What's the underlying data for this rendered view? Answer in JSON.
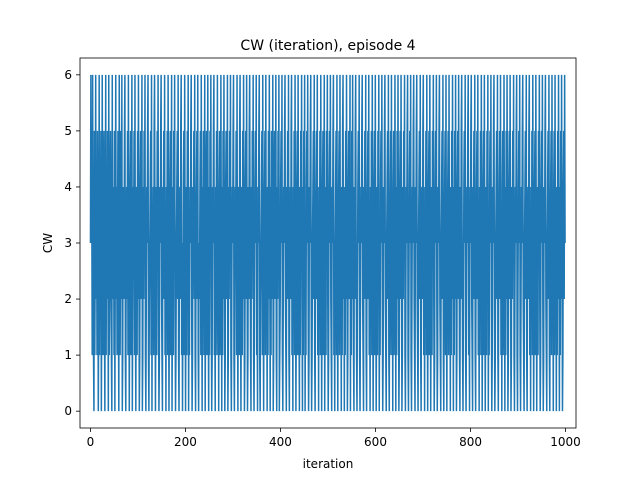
{
  "chart_data": {
    "type": "line",
    "title": "CW (iteration), episode 4",
    "xlabel": "iteration",
    "ylabel": "CW",
    "xlim": [
      -22,
      1022
    ],
    "ylim": [
      -0.3,
      6.3
    ],
    "xticks": [
      0,
      200,
      400,
      600,
      800,
      1000
    ],
    "yticks": [
      0,
      1,
      2,
      3,
      4,
      5,
      6
    ],
    "grid": false,
    "series": [
      {
        "color": "#1f77b4",
        "linewidth": 1.5,
        "values_description_free": true,
        "x_start": 0,
        "x_end": 999,
        "values": [
          3,
          6,
          3,
          4,
          1,
          6,
          2,
          1,
          0,
          5,
          1,
          3,
          6,
          2,
          4,
          1,
          5,
          3,
          0,
          2,
          6,
          1,
          4,
          3,
          5,
          0,
          2,
          6,
          3,
          1,
          4,
          5,
          2,
          0,
          3,
          6,
          1,
          4,
          2,
          5,
          3,
          0,
          6,
          1,
          2,
          4,
          5,
          3,
          1,
          0,
          6,
          2,
          3,
          4,
          1,
          5,
          0,
          3,
          6,
          2,
          4,
          1,
          3,
          5,
          2,
          0,
          6,
          4,
          1,
          3,
          5,
          2,
          6,
          0,
          1,
          4,
          3,
          2,
          5,
          6,
          1,
          0,
          3,
          4,
          2,
          5,
          1,
          6,
          3,
          0,
          2,
          4,
          5,
          1,
          3,
          6,
          0,
          2,
          4,
          3,
          5,
          1,
          6,
          2,
          0,
          3,
          4,
          1,
          5,
          2,
          6,
          3,
          0,
          1,
          4,
          5,
          2,
          3,
          6,
          0,
          1,
          4,
          2,
          5,
          3,
          6,
          1,
          0,
          2,
          4,
          3,
          5,
          6,
          1,
          0,
          2,
          3,
          4,
          5,
          1,
          6,
          0,
          3,
          2,
          4,
          1,
          5,
          6,
          3,
          0,
          2,
          4,
          1,
          5,
          3,
          6,
          2,
          0,
          1,
          4,
          3,
          5,
          6,
          2,
          1,
          0,
          4,
          3,
          5,
          2,
          6,
          1,
          3,
          0,
          4,
          2,
          5,
          1,
          6,
          3,
          0,
          2,
          4,
          5,
          1,
          3,
          6,
          0,
          2,
          4,
          1,
          5,
          3,
          6,
          2,
          0,
          1,
          3,
          4,
          5,
          2,
          6,
          1,
          0,
          3,
          4,
          2,
          5,
          6,
          1,
          3,
          0,
          2,
          4,
          5,
          1,
          6,
          3,
          0,
          2,
          4,
          1,
          5,
          3,
          6,
          0,
          2,
          1,
          4,
          3,
          5,
          6,
          2,
          0,
          1,
          4,
          3,
          5,
          2,
          6,
          1,
          0,
          3,
          4,
          5,
          2,
          6,
          1,
          0,
          3,
          2,
          4,
          5,
          1,
          6,
          3,
          0,
          4,
          2,
          5,
          1,
          3,
          6,
          0,
          2,
          4,
          5,
          1,
          3,
          6,
          2,
          0,
          4,
          1,
          5,
          3,
          6,
          2,
          0,
          1,
          4,
          3,
          5,
          6,
          1,
          2,
          0,
          4,
          3,
          5,
          1,
          6,
          2,
          3,
          0,
          4,
          5,
          1,
          2,
          6,
          3,
          0,
          4,
          1,
          5,
          2,
          6,
          3,
          0,
          1,
          4,
          5,
          2,
          3,
          6,
          0,
          1,
          4,
          2,
          5,
          3,
          6,
          1,
          0,
          2,
          4,
          3,
          5,
          6,
          1,
          0,
          2,
          4,
          3,
          5,
          1,
          6,
          2,
          0,
          3,
          4,
          1,
          5,
          6,
          2,
          0,
          3,
          4,
          1,
          5,
          2,
          6,
          3,
          0,
          1,
          4,
          5,
          2,
          6,
          3,
          0,
          1,
          4,
          2,
          5,
          6,
          3,
          1,
          0,
          4,
          2,
          5,
          3,
          6,
          1,
          0,
          2,
          4,
          5,
          3,
          6,
          1,
          2,
          0,
          4,
          3,
          5,
          6,
          1,
          0,
          2,
          3,
          4,
          5,
          1,
          6,
          2,
          0,
          3,
          4,
          5,
          1,
          6,
          2,
          3,
          0,
          4,
          1,
          5,
          2,
          6,
          3,
          0,
          4,
          1,
          5,
          2,
          3,
          6,
          0,
          1,
          4,
          5,
          2,
          3,
          6,
          1,
          0,
          4,
          2,
          5,
          3,
          6,
          0,
          1,
          2,
          4,
          5,
          3,
          6,
          1,
          0,
          2,
          4,
          3,
          5,
          6,
          2,
          1,
          0,
          4,
          3,
          5,
          2,
          6,
          1,
          0,
          3,
          4,
          2,
          5,
          6,
          1,
          3,
          0,
          4,
          2,
          5,
          1,
          6,
          3,
          0,
          2,
          4,
          5,
          1,
          6,
          3,
          2,
          0,
          4,
          1,
          5,
          3,
          6,
          2,
          0,
          4,
          1,
          5,
          3,
          6,
          0,
          2,
          1,
          4,
          5,
          3,
          6,
          2,
          0,
          1,
          4,
          3,
          5,
          6,
          2,
          0,
          1,
          3,
          4,
          5,
          2,
          6,
          1,
          0,
          3,
          4,
          5,
          2,
          6,
          1,
          3,
          0,
          4,
          2,
          5,
          1,
          6,
          3,
          0,
          2,
          4,
          5,
          1,
          3,
          6,
          0,
          2,
          4,
          1,
          5,
          3,
          6,
          2,
          0,
          1,
          4,
          5,
          3,
          6,
          2,
          1,
          0,
          4,
          3,
          5,
          6,
          1,
          2,
          0,
          3,
          4,
          5,
          1,
          6,
          2,
          0,
          3,
          4,
          5,
          1,
          6,
          2,
          3,
          0,
          4,
          1,
          5,
          6,
          2,
          3,
          0,
          4,
          1,
          5,
          2,
          6,
          3,
          0,
          1,
          4,
          5,
          2,
          3,
          6,
          0,
          4,
          1,
          5,
          2,
          6,
          3,
          1,
          0,
          4,
          2,
          5,
          6,
          3,
          1,
          0,
          2,
          4,
          5,
          3,
          6,
          1,
          0,
          2,
          4,
          3,
          5,
          6,
          2,
          1,
          0,
          4,
          3,
          5,
          2,
          6,
          1,
          0,
          3,
          4,
          5,
          2,
          6,
          1,
          3,
          0,
          4,
          2,
          5,
          1,
          6,
          3,
          0,
          2,
          4,
          5,
          1,
          6,
          3,
          0,
          2,
          4,
          1,
          5,
          3,
          6,
          0,
          2,
          1,
          4,
          5,
          3,
          6,
          2,
          0,
          1,
          4,
          3,
          5,
          6,
          2,
          1,
          0,
          3,
          4,
          5,
          2,
          6,
          1,
          0,
          3,
          4,
          5,
          1,
          6,
          2,
          3,
          0,
          4,
          5,
          1,
          2,
          6,
          3,
          0,
          4,
          1,
          5,
          2,
          6,
          3,
          0,
          1,
          4,
          5,
          2,
          6,
          3,
          0,
          1,
          4,
          2,
          5,
          3,
          6,
          1,
          0,
          2,
          4,
          3,
          5,
          6,
          1,
          0,
          2,
          4,
          5,
          3,
          6,
          1,
          0,
          2,
          4,
          3,
          5,
          6,
          2,
          1,
          0,
          4,
          3,
          5,
          6,
          2,
          1,
          0,
          3,
          4,
          5,
          2,
          6,
          1,
          0,
          3,
          4,
          2,
          5,
          6,
          1,
          3,
          0,
          4,
          2,
          5,
          1,
          6,
          3,
          0,
          2,
          4,
          5,
          1,
          6,
          3,
          0,
          2,
          4,
          1,
          5,
          3,
          6,
          2,
          0,
          1,
          4,
          5,
          3,
          6,
          2,
          0,
          1,
          4,
          3,
          5,
          6,
          2,
          1,
          0,
          3,
          4,
          5,
          2,
          6,
          1,
          0,
          3,
          4,
          5,
          1,
          6,
          2,
          0,
          3,
          4,
          5,
          1,
          6,
          2,
          3,
          0,
          4,
          1,
          5,
          2,
          6,
          3,
          0,
          4,
          1,
          5,
          2,
          6,
          3,
          0,
          1,
          4,
          5,
          2,
          6,
          3,
          1,
          0,
          4,
          2,
          5,
          6,
          3,
          1,
          0,
          2,
          4,
          5,
          3,
          6,
          1,
          0,
          2,
          4,
          3,
          5,
          6,
          1,
          2,
          0,
          4,
          3,
          5,
          6,
          2,
          1,
          0,
          4,
          3,
          5,
          2,
          6,
          1,
          0,
          3,
          4,
          5,
          2,
          6,
          1,
          3,
          0,
          4,
          2,
          5,
          1,
          6,
          3,
          0,
          2,
          4,
          5,
          1,
          6,
          3,
          0,
          2,
          4,
          1,
          5,
          3,
          6,
          0,
          2,
          1,
          4,
          5,
          3,
          6,
          2,
          0,
          1,
          4,
          3,
          5,
          6,
          2,
          0,
          1,
          3,
          4,
          5,
          2,
          6,
          1,
          0,
          3,
          4,
          5,
          2,
          6,
          1,
          3,
          0,
          4,
          5,
          1,
          2,
          6,
          3,
          0,
          4,
          1,
          5,
          2,
          6,
          3,
          0,
          1,
          4,
          5,
          2,
          6,
          3,
          0,
          1,
          4,
          2,
          5,
          3,
          6,
          1,
          0,
          2,
          4,
          3,
          5,
          6,
          1,
          0,
          2,
          4,
          5,
          3,
          6,
          1,
          0,
          2,
          4,
          3,
          5,
          6,
          2,
          1,
          0,
          3,
          4,
          5,
          2,
          6,
          1,
          0,
          3,
          4,
          2,
          5,
          6,
          1,
          3,
          0,
          4,
          2,
          5,
          1,
          6,
          3,
          0,
          2,
          4,
          5,
          1,
          6,
          3,
          0,
          2,
          4,
          1,
          5,
          3,
          6,
          2,
          0,
          1,
          4,
          5,
          3,
          6,
          2,
          0,
          1,
          4,
          3,
          5,
          6,
          2,
          1,
          0,
          3,
          4,
          5,
          2,
          6,
          1,
          0,
          3,
          4,
          5,
          1,
          6,
          2,
          3,
          0,
          4,
          5,
          1,
          6,
          2,
          3,
          0,
          4,
          1,
          5,
          2,
          6,
          3,
          0,
          4,
          1,
          5,
          2,
          6,
          3,
          0,
          1,
          4,
          5,
          2,
          6,
          3
        ]
      }
    ]
  }
}
